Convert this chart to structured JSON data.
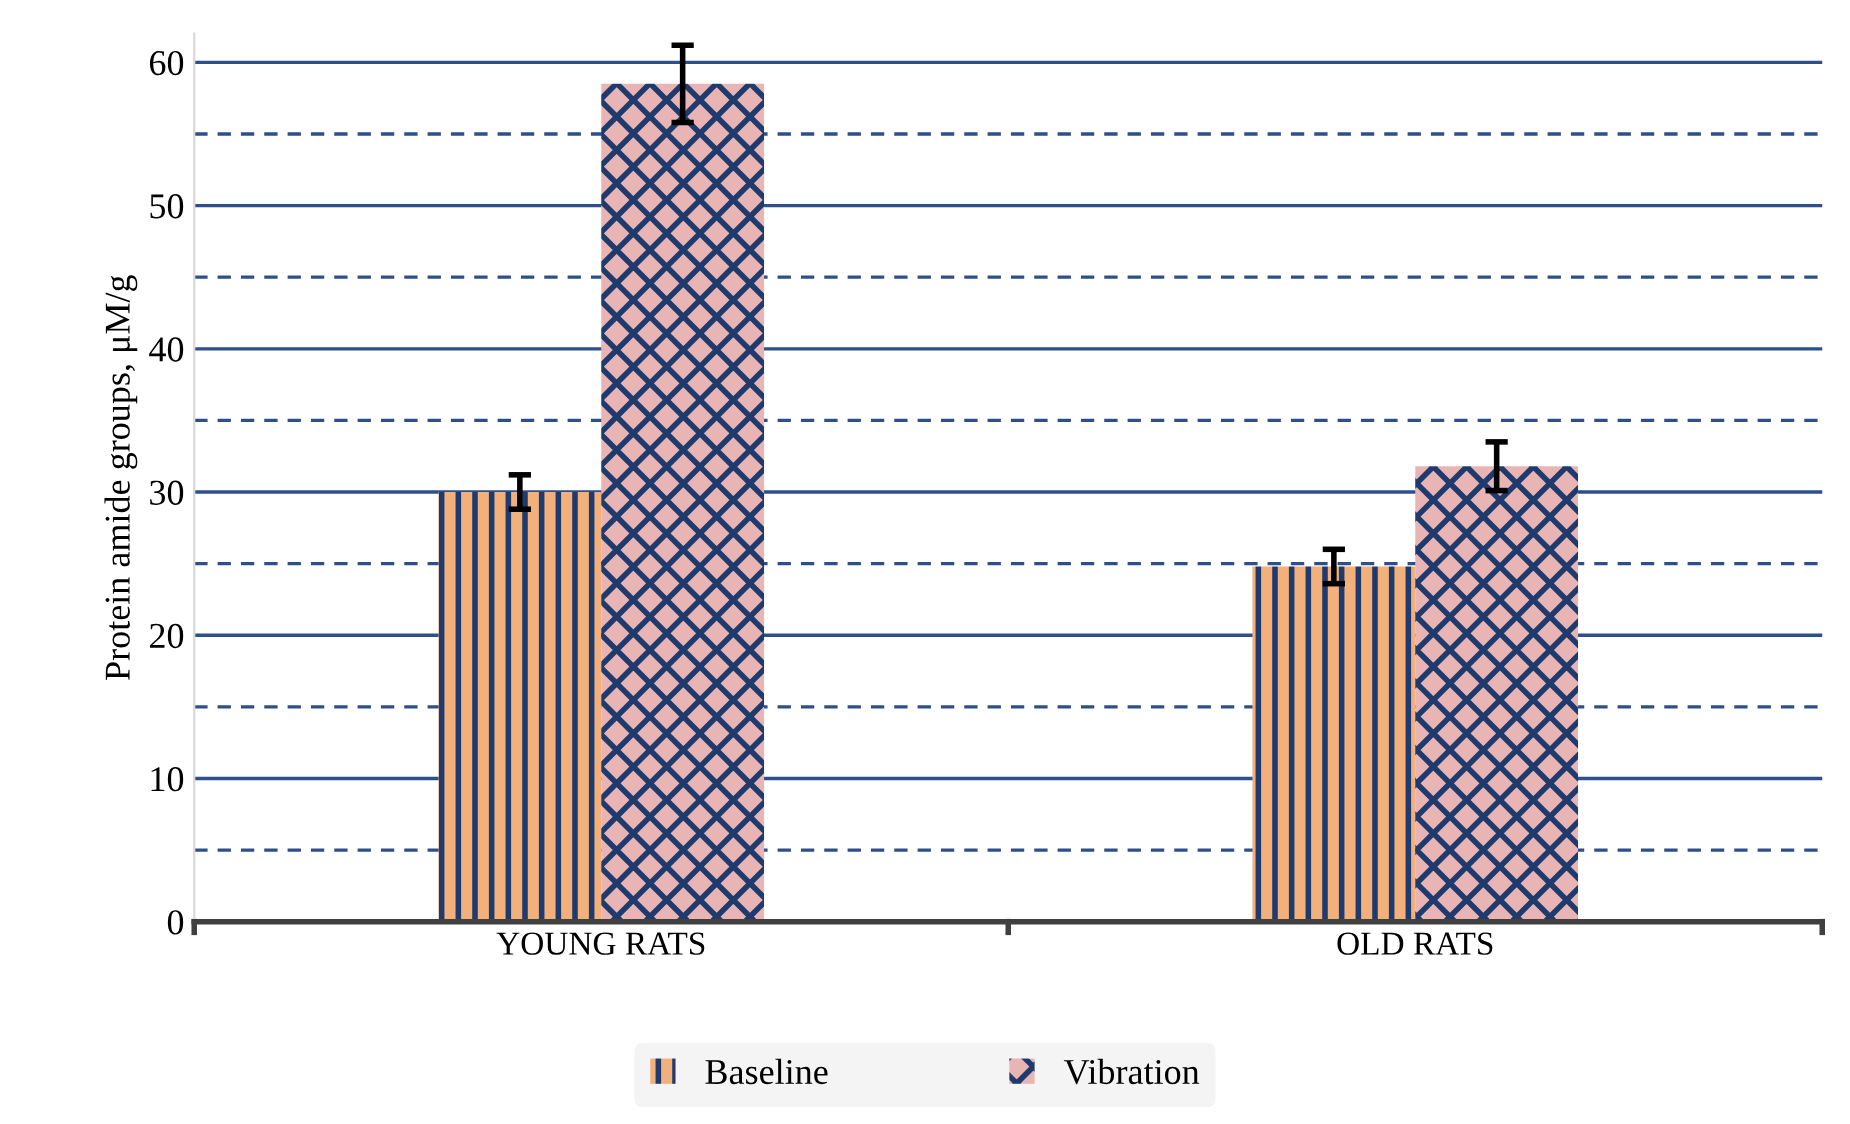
{
  "chart_data": {
    "type": "bar",
    "ylabel": "Protein amide groups, μM/g",
    "categories": [
      "YOUNG RATS",
      "OLD RATS"
    ],
    "series": [
      {
        "name": "Baseline",
        "color": "#f4b07a",
        "values": [
          30,
          24.8
        ],
        "errors": [
          1.2,
          1.2
        ]
      },
      {
        "name": "Vibration",
        "color": "#e8b4b4",
        "values": [
          58.5,
          31.8
        ],
        "errors": [
          2.7,
          1.7
        ]
      }
    ],
    "ylim": [
      0,
      62
    ],
    "yticks": [
      0,
      {
        "value": 5,
        "label": null
      },
      10,
      {
        "value": 15,
        "label": null
      },
      20,
      {
        "value": 25,
        "label": null
      },
      30,
      {
        "value": 35,
        "label": null
      },
      40,
      {
        "value": 45,
        "label": null
      },
      50,
      {
        "value": 55,
        "label": null
      },
      60
    ],
    "grid": "y",
    "legend": "bottom"
  }
}
